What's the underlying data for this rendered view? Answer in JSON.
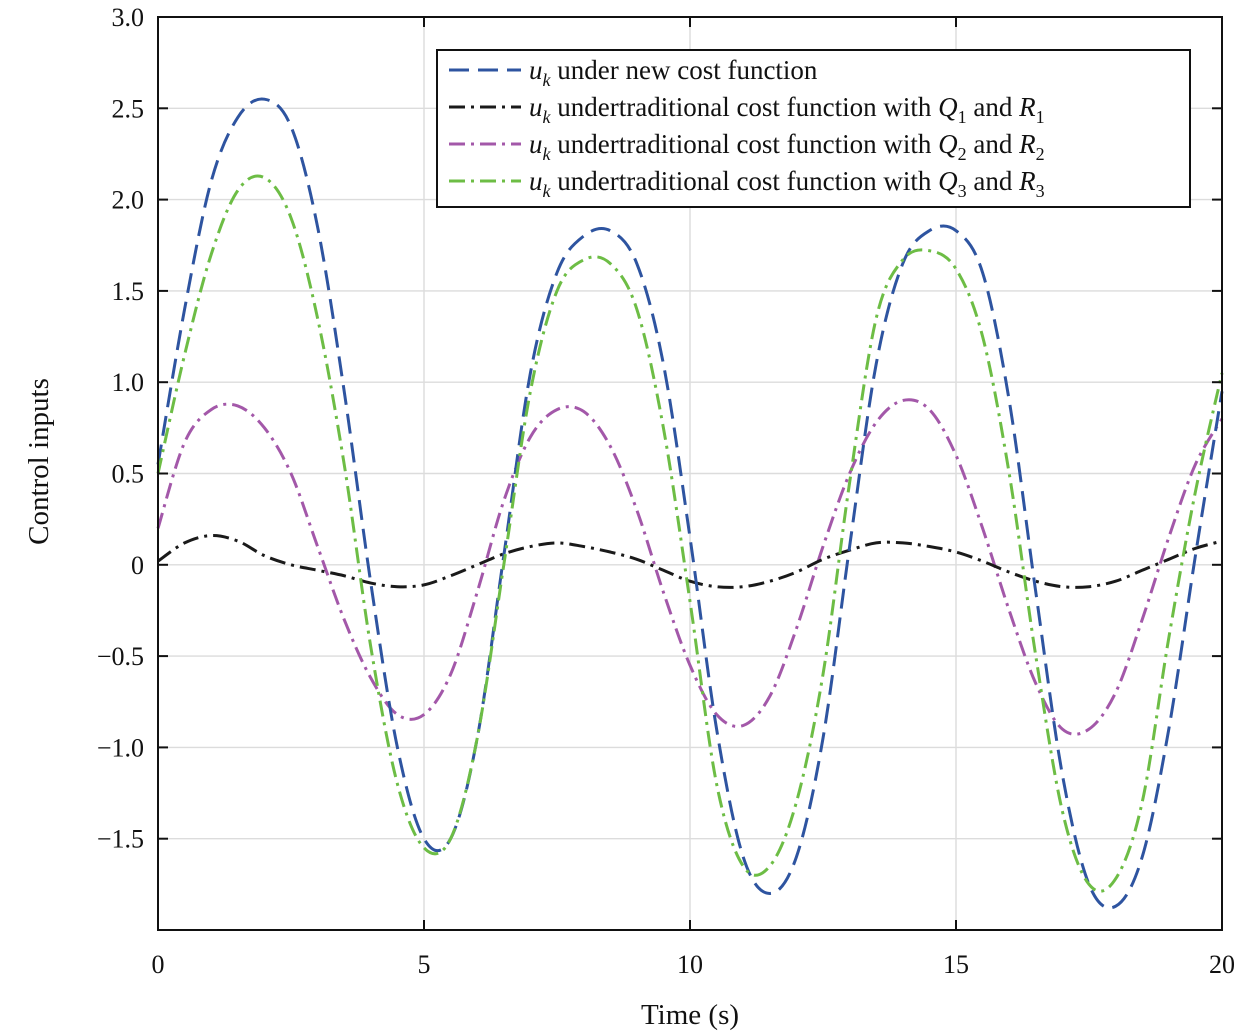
{
  "chart_data": {
    "type": "line",
    "xlabel": "Time (s)",
    "ylabel": "Control inputs",
    "xlim": [
      0,
      20
    ],
    "ylim": [
      -2.0,
      3.0
    ],
    "xticks": [
      0,
      5,
      10,
      15,
      20
    ],
    "xtick_labels": [
      "0",
      "5",
      "10",
      "15",
      "20"
    ],
    "yticks": [
      3.0,
      2.5,
      2.0,
      1.5,
      1.0,
      0.5,
      0,
      -0.5,
      -1.0,
      -1.5
    ],
    "ytick_labels": [
      "3.0",
      "2.5",
      "2.0",
      "1.5",
      "1.0",
      "0.5",
      "0",
      "−0.5",
      "−1.0",
      "−1.5"
    ],
    "grid": true,
    "legend_position": "top-right",
    "x": [
      0,
      0.5,
      1,
      1.5,
      2,
      2.5,
      3,
      3.5,
      4,
      4.5,
      5,
      5.5,
      6,
      6.5,
      7,
      7.5,
      8,
      8.5,
      9,
      9.5,
      10,
      10.5,
      11,
      11.5,
      12,
      12.5,
      13,
      13.5,
      14,
      14.5,
      15,
      15.5,
      16,
      16.5,
      17,
      17.5,
      18,
      18.5,
      19,
      19.5,
      20
    ],
    "series": [
      {
        "name": "u_k under new cost function",
        "legend": {
          "sym": "u",
          "sub": "k",
          "text": " under new cost function",
          "q": "",
          "qsub": "",
          "mid": "",
          "r": "",
          "rsub": ""
        },
        "color": "#2e54a0",
        "dash": "20,9",
        "values": [
          0.55,
          1.4,
          2.1,
          2.45,
          2.55,
          2.4,
          1.85,
          0.95,
          -0.1,
          -1.0,
          -1.5,
          -1.5,
          -0.95,
          0.05,
          1.05,
          1.6,
          1.8,
          1.83,
          1.65,
          1.1,
          0.15,
          -0.9,
          -1.6,
          -1.8,
          -1.6,
          -0.95,
          0.1,
          1.1,
          1.65,
          1.83,
          1.83,
          1.6,
          0.9,
          -0.15,
          -1.15,
          -1.75,
          -1.87,
          -1.6,
          -0.9,
          0.05,
          0.95
        ]
      },
      {
        "name": "u_k undertraditional cost function with Q_1 and R_1",
        "legend": {
          "sym": "u",
          "sub": "k",
          "text": " undertraditional cost function with ",
          "q": "Q",
          "qsub": "1",
          "mid": " and ",
          "r": "R",
          "rsub": "1"
        },
        "color": "#1a1a1a",
        "dash": "16,6,3,6",
        "values": [
          0.02,
          0.12,
          0.16,
          0.13,
          0.05,
          0.0,
          -0.03,
          -0.06,
          -0.1,
          -0.12,
          -0.11,
          -0.06,
          0.0,
          0.06,
          0.1,
          0.12,
          0.1,
          0.07,
          0.03,
          -0.03,
          -0.09,
          -0.12,
          -0.12,
          -0.09,
          -0.04,
          0.03,
          0.08,
          0.12,
          0.12,
          0.1,
          0.07,
          0.02,
          -0.04,
          -0.09,
          -0.12,
          -0.12,
          -0.09,
          -0.03,
          0.03,
          0.09,
          0.13
        ]
      },
      {
        "name": "u_k undertraditional cost function with Q_2 and R_2",
        "legend": {
          "sym": "u",
          "sub": "k",
          "text": " undertraditional cost function with ",
          "q": "Q",
          "qsub": "2",
          "mid": " and ",
          "r": "R",
          "rsub": "2"
        },
        "color": "#a358a9",
        "dash": "16,6,3,6",
        "values": [
          0.2,
          0.67,
          0.85,
          0.87,
          0.75,
          0.5,
          0.1,
          -0.3,
          -0.62,
          -0.82,
          -0.82,
          -0.6,
          -0.15,
          0.35,
          0.7,
          0.85,
          0.84,
          0.65,
          0.3,
          -0.15,
          -0.55,
          -0.82,
          -0.88,
          -0.72,
          -0.35,
          0.1,
          0.5,
          0.78,
          0.9,
          0.85,
          0.6,
          0.2,
          -0.25,
          -0.65,
          -0.9,
          -0.9,
          -0.7,
          -0.3,
          0.15,
          0.55,
          0.8
        ]
      },
      {
        "name": "u_k undertraditional cost function with Q_3 and R_3",
        "legend": {
          "sym": "u",
          "sub": "k",
          "text": " undertraditional cost function with ",
          "q": "Q",
          "qsub": "3",
          "mid": " and ",
          "r": "R",
          "rsub": "3"
        },
        "color": "#6dbd45",
        "dash": "16,6,3,6",
        "values": [
          0.5,
          1.15,
          1.7,
          2.05,
          2.12,
          1.9,
          1.35,
          0.55,
          -0.45,
          -1.2,
          -1.55,
          -1.5,
          -0.95,
          0.0,
          0.95,
          1.5,
          1.67,
          1.65,
          1.4,
          0.75,
          -0.2,
          -1.2,
          -1.65,
          -1.65,
          -1.3,
          -0.6,
          0.45,
          1.35,
          1.67,
          1.72,
          1.62,
          1.25,
          0.5,
          -0.5,
          -1.35,
          -1.75,
          -1.72,
          -1.3,
          -0.4,
          0.4,
          1.05
        ]
      }
    ]
  }
}
